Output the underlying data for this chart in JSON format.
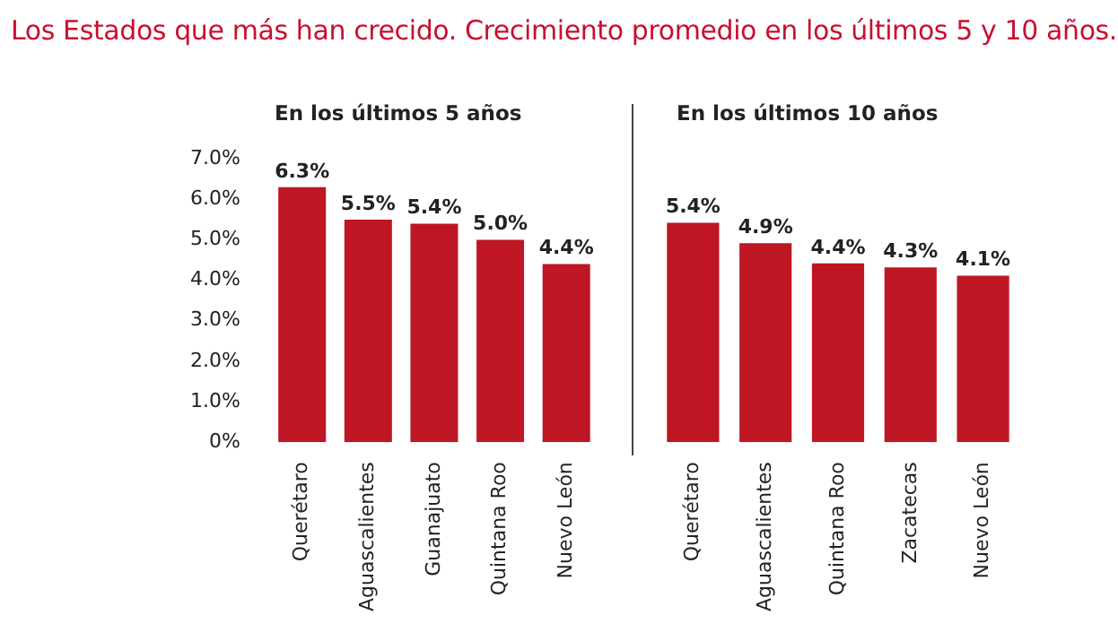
{
  "chart_data": [
    {
      "type": "bar",
      "title": "Los Estados que más han crecido. Crecimiento promedio en los últimos 5 y 10 años.",
      "subtitle": "En los últimos 5 años",
      "categories": [
        "Querétaro",
        "Aguascalientes",
        "Guanajuato",
        "Quintana Roo",
        "Nuevo León"
      ],
      "values": [
        6.3,
        5.5,
        5.4,
        5.0,
        4.4
      ],
      "value_labels": [
        "6.3%",
        "5.5%",
        "5.4%",
        "5.0%",
        "4.4%"
      ],
      "color": "#be1622",
      "ylim": [
        0,
        7
      ],
      "yticks": [
        {
          "value": 0,
          "label": "0%"
        },
        {
          "value": 1,
          "label": "1.0%"
        },
        {
          "value": 2,
          "label": "2.0%"
        },
        {
          "value": 3,
          "label": "3.0%"
        },
        {
          "value": 4,
          "label": "4.0%"
        },
        {
          "value": 5,
          "label": "5.0%"
        },
        {
          "value": 6,
          "label": "6.0%"
        },
        {
          "value": 7,
          "label": "7.0%"
        }
      ],
      "grid": false
    },
    {
      "type": "bar",
      "subtitle": "En los últimos 10 años",
      "categories": [
        "Querétaro",
        "Aguascalientes",
        "Quintana Roo",
        "Zacatecas",
        "Nuevo León"
      ],
      "values": [
        5.4,
        4.9,
        4.4,
        4.3,
        4.1
      ],
      "value_labels": [
        "5.4%",
        "4.9%",
        "4.4%",
        "4.3%",
        "4.1%"
      ],
      "color": "#be1622",
      "ylim": [
        0,
        7
      ],
      "tick_labels": "x",
      "grid": false
    }
  ]
}
